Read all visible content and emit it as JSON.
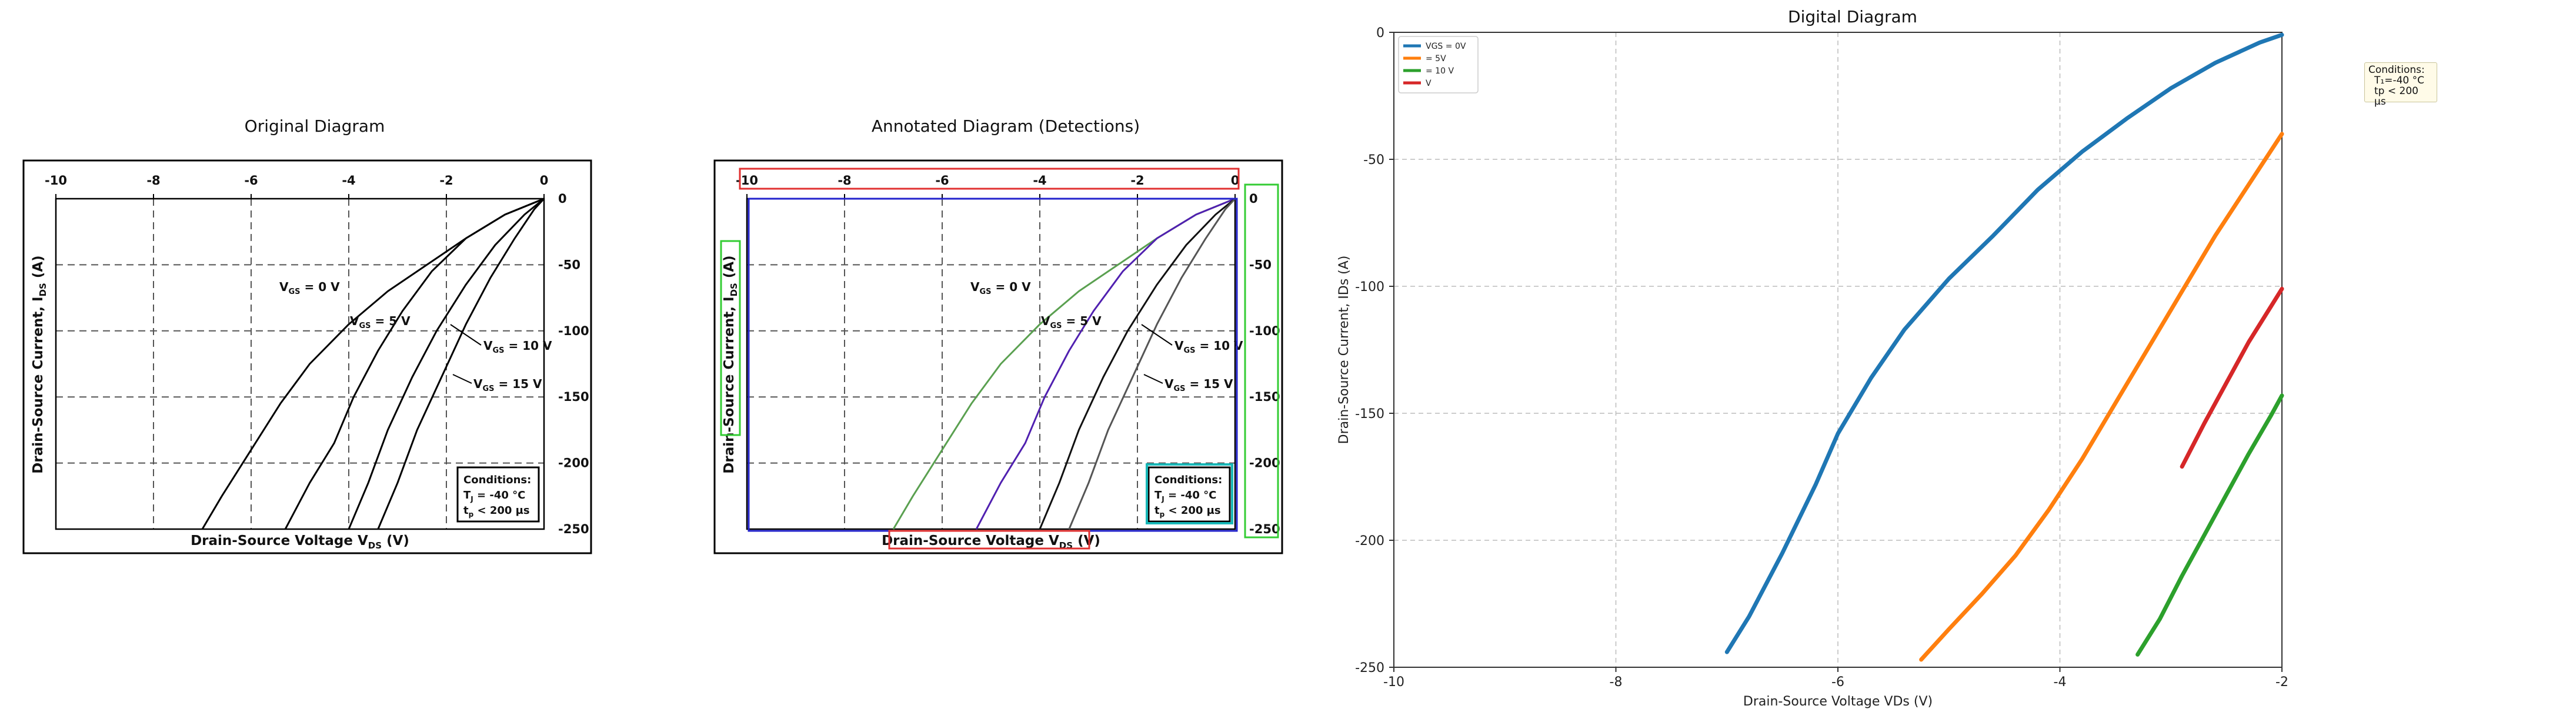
{
  "panels": {
    "original": {
      "title": "Original Diagram",
      "x_ticks": [
        "-10",
        "-8",
        "-6",
        "-4",
        "-2",
        "0"
      ],
      "y_ticks": [
        "0",
        "-50",
        "-100",
        "-150",
        "-200",
        "-250"
      ],
      "xlabel": "Drain-Source Voltage V",
      "xlabel_sub": "DS",
      "xlabel_tail": " (V)",
      "ylabel": "Drain-Source Current, I",
      "ylabel_sub": "DS",
      "ylabel_tail": " (A)",
      "curve_labels": [
        {
          "text": "V",
          "sub": "GS",
          "tail": " = 0 V"
        },
        {
          "text": "V",
          "sub": "GS",
          "tail": " = 5 V"
        },
        {
          "text": "V",
          "sub": "GS",
          "tail": " = 10 V"
        },
        {
          "text": "V",
          "sub": "GS",
          "tail": " = 15 V"
        }
      ],
      "conditions": {
        "title": "Conditions:",
        "line1": "T",
        "line1_sub": "J",
        "line1_tail": " = -40 °C",
        "line2": "t",
        "line2_sub": "p",
        "line2_tail": " < 200 µs"
      }
    },
    "annotated": {
      "title": "Annotated Diagram (Detections)",
      "x_ticks": [
        "-10",
        "-8",
        "-6",
        "-4",
        "-2",
        "0"
      ],
      "y_ticks": [
        "0",
        "-50",
        "-100",
        "-150",
        "-200",
        "-250"
      ],
      "xlabel": "Drain-Source Voltage V",
      "xlabel_sub": "DS",
      "xlabel_tail": " (V)",
      "ylabel": "Drain-Source Current, I",
      "ylabel_sub": "DS",
      "ylabel_tail": " (A)",
      "curve_labels": [
        {
          "text": "V",
          "sub": "GS",
          "tail": " = 0 V"
        },
        {
          "text": "V",
          "sub": "GS",
          "tail": " = 5 V"
        },
        {
          "text": "V",
          "sub": "GS",
          "tail": " = 10 V"
        },
        {
          "text": "V",
          "sub": "GS",
          "tail": " = 15 V"
        }
      ],
      "conditions": {
        "title": "Conditions:",
        "line1": "T",
        "line1_sub": "J",
        "line1_tail": " = -40 °C",
        "line2": "t",
        "line2_sub": "p",
        "line2_tail": " < 200 µs"
      }
    },
    "digital": {
      "title": "Digital Diagram",
      "conditions": {
        "title": "Conditions:",
        "line1": "T₁=-40 °C",
        "line2": "tp < 200 µs"
      }
    }
  },
  "colors": {
    "series_blue": "#1f77b4",
    "series_orange": "#ff7f0e",
    "series_green": "#2ca02c",
    "series_red": "#d62728",
    "annot_red": "#e03030",
    "annot_green": "#33cc33",
    "annot_blue": "#2222cc",
    "annot_cyan": "#18b8b8",
    "annot_curve_green": "#5aa050",
    "annot_curve_purple": "#5020b0"
  },
  "chart_data": [
    {
      "type": "line",
      "title": "Original Diagram",
      "xlabel": "Drain-Source Voltage VDS (V)",
      "ylabel": "Drain-Source Current, IDS (A)",
      "xlim": [
        -10,
        0
      ],
      "ylim": [
        -250,
        0
      ],
      "grid": true,
      "series": [
        {
          "name": "VGS = 0 V",
          "x": [
            -7.0,
            -6.6,
            -6.0,
            -5.4,
            -4.8,
            -4.0,
            -3.2,
            -2.4,
            -1.6,
            -0.8,
            0.0
          ],
          "y": [
            -250,
            -225,
            -190,
            -155,
            -125,
            -95,
            -70,
            -50,
            -30,
            -12,
            0
          ]
        },
        {
          "name": "VGS = 5 V",
          "x": [
            -5.3,
            -4.8,
            -4.3,
            -3.9,
            -3.4,
            -2.9,
            -2.3,
            -1.6,
            -0.8,
            0.0
          ],
          "y": [
            -250,
            -215,
            -185,
            -150,
            -115,
            -85,
            -55,
            -30,
            -12,
            0
          ]
        },
        {
          "name": "VGS = 10 V",
          "x": [
            -4.0,
            -3.6,
            -3.2,
            -2.7,
            -2.2,
            -1.6,
            -1.0,
            -0.4,
            0.0
          ],
          "y": [
            -250,
            -215,
            -175,
            -135,
            -100,
            -65,
            -35,
            -12,
            0
          ]
        },
        {
          "name": "VGS = 15 V",
          "x": [
            -3.4,
            -3.0,
            -2.6,
            -2.1,
            -1.6,
            -1.1,
            -0.6,
            -0.2,
            0.0
          ],
          "y": [
            -250,
            -215,
            -175,
            -135,
            -95,
            -60,
            -30,
            -8,
            0
          ]
        }
      ]
    },
    {
      "type": "line",
      "title": "Digital Diagram",
      "xlabel": "Drain-Source Voltage VDs (V)",
      "ylabel": "Drain-Source Current, IDs (A)",
      "xlim": [
        -10,
        -2
      ],
      "ylim": [
        -250,
        0
      ],
      "x_ticks": [
        -10,
        -8,
        -6,
        -4,
        -2
      ],
      "y_ticks": [
        0,
        -50,
        -100,
        -150,
        -200,
        -250
      ],
      "grid": true,
      "legend": "top-left",
      "series": [
        {
          "name": "VGS = 0V",
          "color": "#1f77b4",
          "x": [
            -7.0,
            -6.8,
            -6.5,
            -6.2,
            -6.0,
            -5.7,
            -5.4,
            -5.0,
            -4.6,
            -4.2,
            -3.8,
            -3.4,
            -3.0,
            -2.6,
            -2.2,
            -2.0
          ],
          "y": [
            -244,
            -230,
            -205,
            -178,
            -158,
            -136,
            -117,
            -97,
            -80,
            -62,
            -47,
            -34,
            -22,
            -12,
            -4,
            -1
          ]
        },
        {
          "name": "= 5V",
          "color": "#ff7f0e",
          "x": [
            -5.25,
            -5.0,
            -4.7,
            -4.4,
            -4.1,
            -3.8,
            -3.5,
            -3.2,
            -2.9,
            -2.6,
            -2.3,
            -2.0
          ],
          "y": [
            -247,
            -235,
            -221,
            -206,
            -188,
            -168,
            -146,
            -124,
            -102,
            -80,
            -60,
            -40
          ]
        },
        {
          "name": "= 10 V",
          "color": "#2ca02c",
          "x": [
            -3.3,
            -3.1,
            -2.9,
            -2.7,
            -2.5,
            -2.3,
            -2.1,
            -2.0
          ],
          "y": [
            -245,
            -231,
            -214,
            -198,
            -182,
            -166,
            -151,
            -143
          ]
        },
        {
          "name": "V",
          "color": "#d62728",
          "x": [
            -2.9,
            -2.7,
            -2.5,
            -2.3,
            -2.1,
            -2.0
          ],
          "y": [
            -171,
            -154,
            -138,
            -122,
            -108,
            -101
          ]
        }
      ]
    }
  ]
}
